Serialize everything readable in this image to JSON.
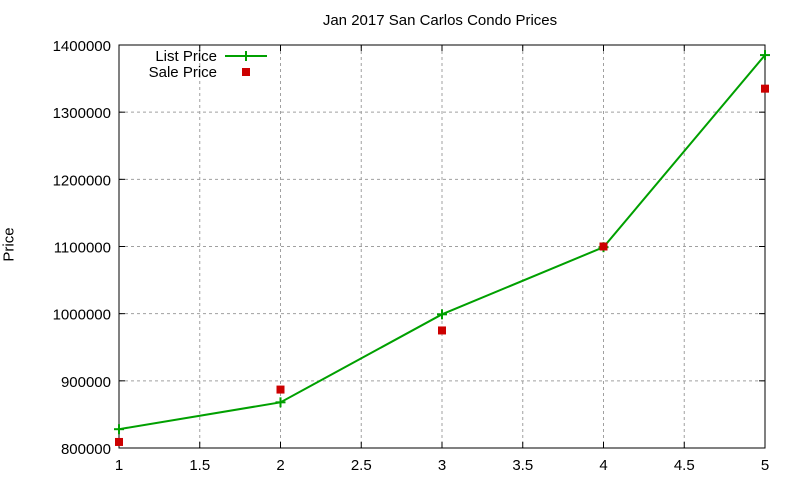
{
  "chart_data": {
    "type": "line",
    "title": "Jan 2017 San Carlos Condo Prices",
    "xlabel": "",
    "ylabel": "Price",
    "xlim": [
      1,
      5
    ],
    "ylim": [
      800000,
      1400000
    ],
    "x_ticks": [
      "1",
      "1.5",
      "2",
      "2.5",
      "3",
      "3.5",
      "4",
      "4.5",
      "5"
    ],
    "y_ticks": [
      "800000",
      "900000",
      "1000000",
      "1100000",
      "1200000",
      "1300000",
      "1400000"
    ],
    "grid": true,
    "legend_position": "top-left",
    "x": [
      1,
      2,
      3,
      4,
      5
    ],
    "series": [
      {
        "name": "List Price",
        "style": "linespoints",
        "marker": "plus",
        "color": "#00a000",
        "values": [
          828000,
          868000,
          999000,
          1099000,
          1385000
        ]
      },
      {
        "name": "Sale Price",
        "style": "points",
        "marker": "square",
        "color": "#cc0000",
        "values": [
          809000,
          887000,
          975000,
          1100000,
          1335000
        ]
      }
    ]
  }
}
